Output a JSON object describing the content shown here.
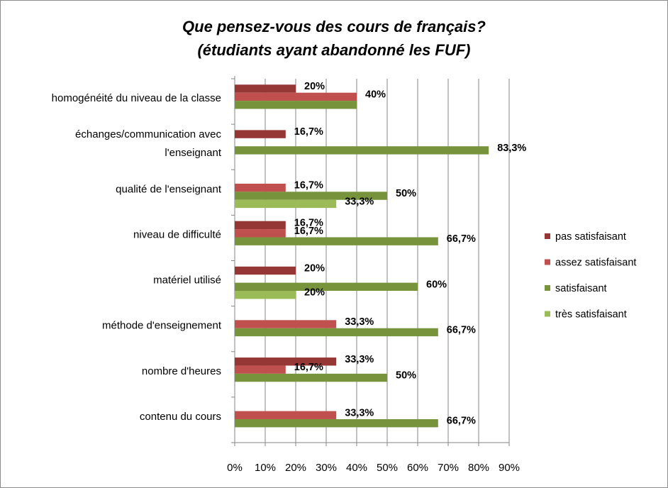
{
  "chart_data": {
    "type": "bar",
    "orientation": "horizontal",
    "title": [
      "Que pensez-vous des cours de français?",
      "(étudiants ayant abandonné  les FUF)"
    ],
    "categories": [
      "homogénéité du niveau de la classe",
      "échanges/communication avec l'enseignant",
      "qualité de l'enseignant",
      "niveau de difficulté",
      "matériel utilisé",
      "méthode d'enseignement",
      "nombre d'heures",
      "contenu du cours"
    ],
    "category_lines": [
      [
        "homogénéité du niveau de la classe"
      ],
      [
        "échanges/communication avec",
        "l'enseignant"
      ],
      [
        "qualité de l'enseignant"
      ],
      [
        "niveau de difficulté"
      ],
      [
        "matériel utilisé"
      ],
      [
        "méthode d'enseignement"
      ],
      [
        "nombre d'heures"
      ],
      [
        "contenu du cours"
      ]
    ],
    "series": [
      {
        "name": "pas satisfaisant",
        "color": "#953735",
        "values": [
          20,
          16.7,
          null,
          16.7,
          20,
          null,
          33.3,
          null
        ],
        "labels": [
          "20%",
          "16,7%",
          null,
          "16,7%",
          "20%",
          null,
          "33,3%",
          null
        ]
      },
      {
        "name": "assez satisfaisant",
        "color": "#C0504D",
        "values": [
          40,
          null,
          16.7,
          16.7,
          null,
          33.3,
          16.7,
          33.3
        ],
        "labels": [
          "40%",
          null,
          "16,7%",
          "16,7%",
          null,
          "33,3%",
          "16,7%",
          "33,3%"
        ]
      },
      {
        "name": "satisfaisant",
        "color": "#77933C",
        "values": [
          40,
          83.3,
          50,
          66.7,
          60,
          66.7,
          50,
          66.7
        ],
        "labels": [
          null,
          "83,3%",
          "50%",
          "66,7%",
          "60%",
          "66,7%",
          "50%",
          "66,7%"
        ]
      },
      {
        "name": "très satisfaisant",
        "color": "#9BBB59",
        "values": [
          null,
          null,
          33.3,
          null,
          20,
          null,
          null,
          null
        ],
        "labels": [
          null,
          null,
          "33,3%",
          null,
          "20%",
          null,
          null,
          null
        ]
      }
    ],
    "xlim": [
      0,
      90
    ],
    "xticks": [
      "0%",
      "10%",
      "20%",
      "30%",
      "40%",
      "50%",
      "60%",
      "70%",
      "80%",
      "90%"
    ],
    "grid": "vertical",
    "legend": "right"
  }
}
